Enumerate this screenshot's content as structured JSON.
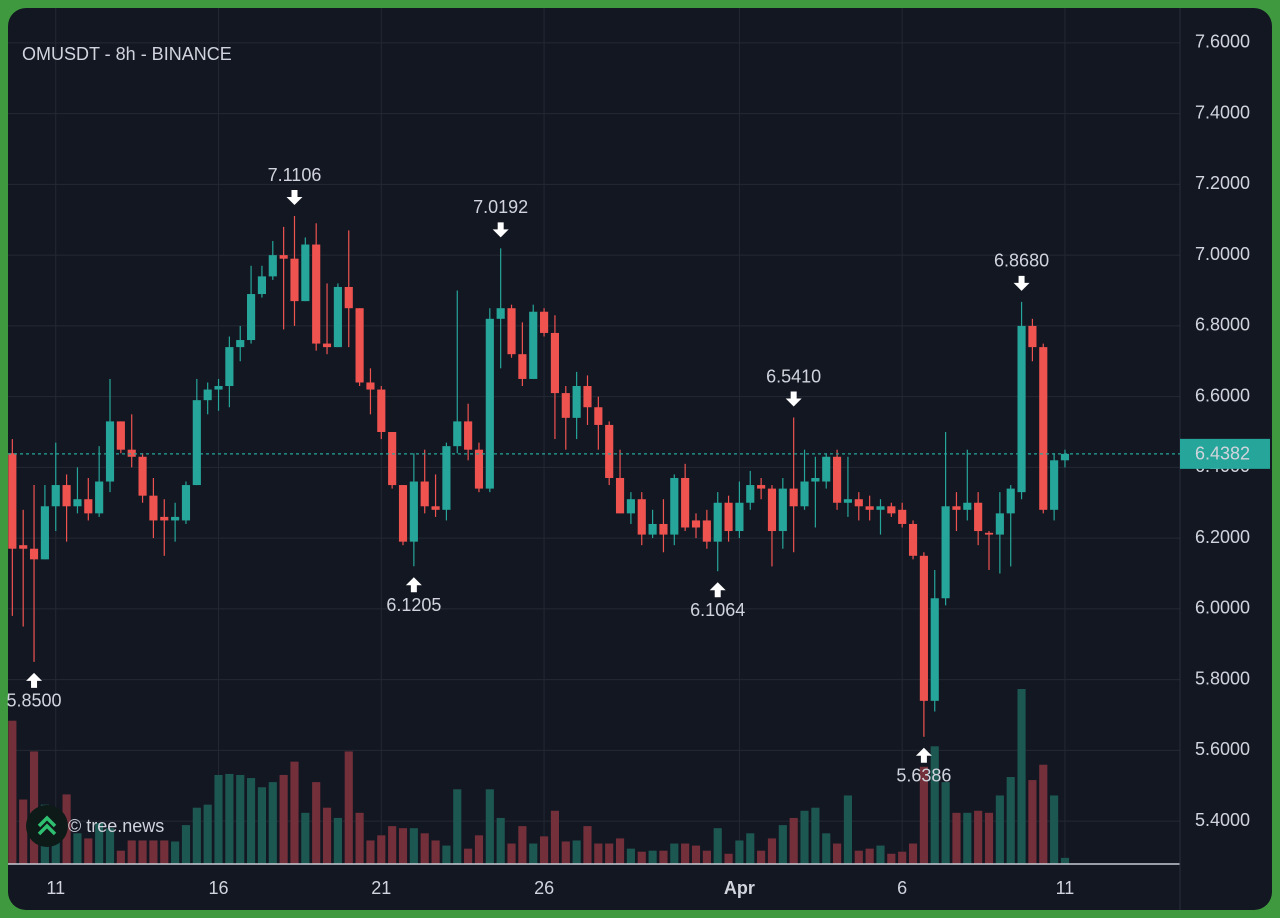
{
  "chart_data": {
    "type": "candlestick",
    "title": "OMUSDT - 8h - BINANCE",
    "watermark": "© tree.news",
    "up_color": "#26a69a",
    "down_color": "#ef5350",
    "up_volume_color": "#1d5752",
    "down_volume_color": "#74303a",
    "grid": true,
    "xlim": [
      -0.4,
      107.6
    ],
    "xticks": [
      {
        "value": 4,
        "label": "11"
      },
      {
        "value": 19,
        "label": "16"
      },
      {
        "value": 34,
        "label": "21"
      },
      {
        "value": 49,
        "label": "26"
      },
      {
        "value": 67,
        "label": "Apr"
      },
      {
        "value": 82,
        "label": "6"
      },
      {
        "value": 97,
        "label": "11"
      }
    ],
    "ylim": [
      5.2787,
      7.6987
    ],
    "yticks": [
      {
        "value": 7.6,
        "label": "7.6000"
      },
      {
        "value": 7.4,
        "label": "7.4000"
      },
      {
        "value": 7.2,
        "label": "7.2000"
      },
      {
        "value": 7.0,
        "label": "7.0000"
      },
      {
        "value": 6.8,
        "label": "6.8000"
      },
      {
        "value": 6.6,
        "label": "6.6000"
      },
      {
        "value": 6.4,
        "label": "6.4000"
      },
      {
        "value": 6.2,
        "label": "6.2000"
      },
      {
        "value": 6.0,
        "label": "6.0000"
      },
      {
        "value": 5.8,
        "label": "5.8000"
      },
      {
        "value": 5.6,
        "label": "5.6000"
      },
      {
        "value": 5.4,
        "label": "5.4000"
      }
    ],
    "last_price": {
      "value": 6.4382,
      "label": "6.4382"
    },
    "open": [
      6.44,
      6.18,
      6.17,
      6.14,
      6.29,
      6.35,
      6.29,
      6.31,
      6.27,
      6.36,
      6.53,
      6.45,
      6.43,
      6.32,
      6.26,
      6.25,
      6.25,
      6.35,
      6.59,
      6.62,
      6.63,
      6.74,
      6.76,
      6.89,
      6.94,
      7.0,
      6.99,
      6.87,
      7.03,
      6.75,
      6.74,
      6.91,
      6.85,
      6.64,
      6.62,
      6.5,
      6.35,
      6.19,
      6.36,
      6.29,
      6.28,
      6.46,
      6.53,
      6.45,
      6.34,
      6.82,
      6.85,
      6.72,
      6.65,
      6.84,
      6.78,
      6.61,
      6.54,
      6.63,
      6.57,
      6.52,
      6.37,
      6.27,
      6.31,
      6.21,
      6.24,
      6.21,
      6.37,
      6.25,
      6.25,
      6.19,
      6.3,
      6.22,
      6.3,
      6.35,
      6.34,
      6.22,
      6.34,
      6.29,
      6.36,
      6.36,
      6.43,
      6.3,
      6.31,
      6.29,
      6.28,
      6.29,
      6.28,
      6.24,
      6.15,
      5.74,
      6.03,
      6.29,
      6.28,
      6.3,
      6.215,
      6.21,
      6.27,
      6.33,
      6.8,
      6.74,
      6.28,
      6.42
    ],
    "high": [
      6.48,
      6.28,
      6.35,
      6.35,
      6.47,
      6.38,
      6.4,
      6.37,
      6.46,
      6.65,
      6.53,
      6.55,
      6.44,
      6.37,
      6.31,
      6.3,
      6.36,
      6.65,
      6.64,
      6.65,
      6.77,
      6.8,
      6.97,
      6.97,
      7.04,
      7.08,
      7.1106,
      7.05,
      7.09,
      6.92,
      6.92,
      7.07,
      6.85,
      6.68,
      6.63,
      6.5,
      6.35,
      6.44,
      6.45,
      6.38,
      6.47,
      6.9,
      6.58,
      6.47,
      6.85,
      7.0192,
      6.86,
      6.81,
      6.86,
      6.85,
      6.83,
      6.63,
      6.67,
      6.66,
      6.6,
      6.53,
      6.45,
      6.33,
      6.33,
      6.28,
      6.31,
      6.38,
      6.41,
      6.27,
      6.28,
      6.33,
      6.32,
      6.36,
      6.39,
      6.37,
      6.35,
      6.37,
      6.541,
      6.45,
      6.43,
      6.44,
      6.45,
      6.43,
      6.33,
      6.32,
      6.31,
      6.3,
      6.3,
      6.25,
      6.16,
      6.11,
      6.5,
      6.33,
      6.45,
      6.33,
      6.22,
      6.33,
      6.35,
      6.868,
      6.82,
      6.75,
      6.44,
      6.45
    ],
    "low": [
      5.98,
      5.95,
      5.85,
      6.14,
      6.22,
      6.19,
      6.27,
      6.25,
      6.26,
      6.33,
      6.44,
      6.4,
      6.3,
      6.2,
      6.15,
      6.19,
      6.24,
      6.35,
      6.55,
      6.56,
      6.57,
      6.7,
      6.75,
      6.88,
      6.93,
      6.79,
      6.8,
      6.87,
      6.73,
      6.72,
      6.74,
      6.74,
      6.63,
      6.55,
      6.48,
      6.34,
      6.18,
      6.1205,
      6.27,
      6.26,
      6.25,
      6.44,
      6.42,
      6.33,
      6.33,
      6.68,
      6.71,
      6.63,
      6.65,
      6.77,
      6.48,
      6.45,
      6.48,
      6.52,
      6.45,
      6.35,
      6.27,
      6.24,
      6.18,
      6.2,
      6.16,
      6.18,
      6.22,
      6.2,
      6.17,
      6.1064,
      6.19,
      6.2,
      6.28,
      6.31,
      6.12,
      6.17,
      6.16,
      6.28,
      6.23,
      6.34,
      6.28,
      6.26,
      6.25,
      6.25,
      6.21,
      6.26,
      6.23,
      6.14,
      5.6386,
      5.71,
      6.01,
      6.22,
      6.25,
      6.18,
      6.11,
      6.1,
      6.12,
      6.31,
      6.7,
      6.27,
      6.25,
      6.4
    ],
    "close": [
      6.17,
      6.17,
      6.14,
      6.29,
      6.35,
      6.29,
      6.31,
      6.27,
      6.36,
      6.53,
      6.45,
      6.43,
      6.32,
      6.25,
      6.25,
      6.26,
      6.35,
      6.59,
      6.62,
      6.63,
      6.74,
      6.76,
      6.89,
      6.94,
      7.0,
      6.99,
      6.87,
      7.03,
      6.75,
      6.74,
      6.91,
      6.85,
      6.64,
      6.62,
      6.5,
      6.35,
      6.19,
      6.36,
      6.29,
      6.28,
      6.46,
      6.53,
      6.45,
      6.34,
      6.82,
      6.85,
      6.72,
      6.65,
      6.84,
      6.78,
      6.61,
      6.54,
      6.63,
      6.57,
      6.52,
      6.37,
      6.27,
      6.31,
      6.21,
      6.24,
      6.21,
      6.37,
      6.23,
      6.23,
      6.19,
      6.3,
      6.22,
      6.3,
      6.35,
      6.34,
      6.22,
      6.34,
      6.29,
      6.36,
      6.37,
      6.43,
      6.3,
      6.31,
      6.29,
      6.28,
      6.29,
      6.27,
      6.24,
      6.15,
      5.74,
      6.03,
      6.29,
      6.28,
      6.3,
      6.22,
      6.21,
      6.27,
      6.34,
      6.8,
      6.74,
      6.28,
      6.42,
      6.4382
    ],
    "volume": [
      140,
      63,
      110,
      58,
      40,
      68,
      30,
      25,
      40,
      35,
      13,
      23,
      23,
      23,
      23,
      22,
      38,
      55,
      58,
      87,
      88,
      87,
      84,
      75,
      80,
      87,
      100,
      50,
      80,
      55,
      45,
      110,
      50,
      23,
      28,
      37,
      35,
      35,
      30,
      23,
      18,
      73,
      15,
      28,
      73,
      45,
      20,
      37,
      20,
      27,
      52,
      22,
      23,
      37,
      20,
      20,
      25,
      15,
      12,
      13,
      13,
      20,
      20,
      18,
      13,
      35,
      10,
      23,
      30,
      13,
      25,
      38,
      45,
      52,
      55,
      30,
      20,
      67,
      13,
      15,
      18,
      10,
      12,
      20,
      95,
      115,
      80,
      50,
      50,
      52,
      50,
      67,
      85,
      171,
      82,
      97,
      67,
      6
    ],
    "annotations": [
      {
        "candle": 2,
        "side": "low",
        "label": "5.8500"
      },
      {
        "candle": 26,
        "side": "high",
        "label": "7.1106"
      },
      {
        "candle": 37,
        "side": "low",
        "label": "6.1205"
      },
      {
        "candle": 45,
        "side": "high",
        "label": "7.0192"
      },
      {
        "candle": 65,
        "side": "low",
        "label": "6.1064"
      },
      {
        "candle": 72,
        "side": "high",
        "label": "6.5410"
      },
      {
        "candle": 84,
        "side": "low",
        "label": "5.6386"
      },
      {
        "candle": 93,
        "side": "high",
        "label": "6.8680"
      }
    ]
  }
}
